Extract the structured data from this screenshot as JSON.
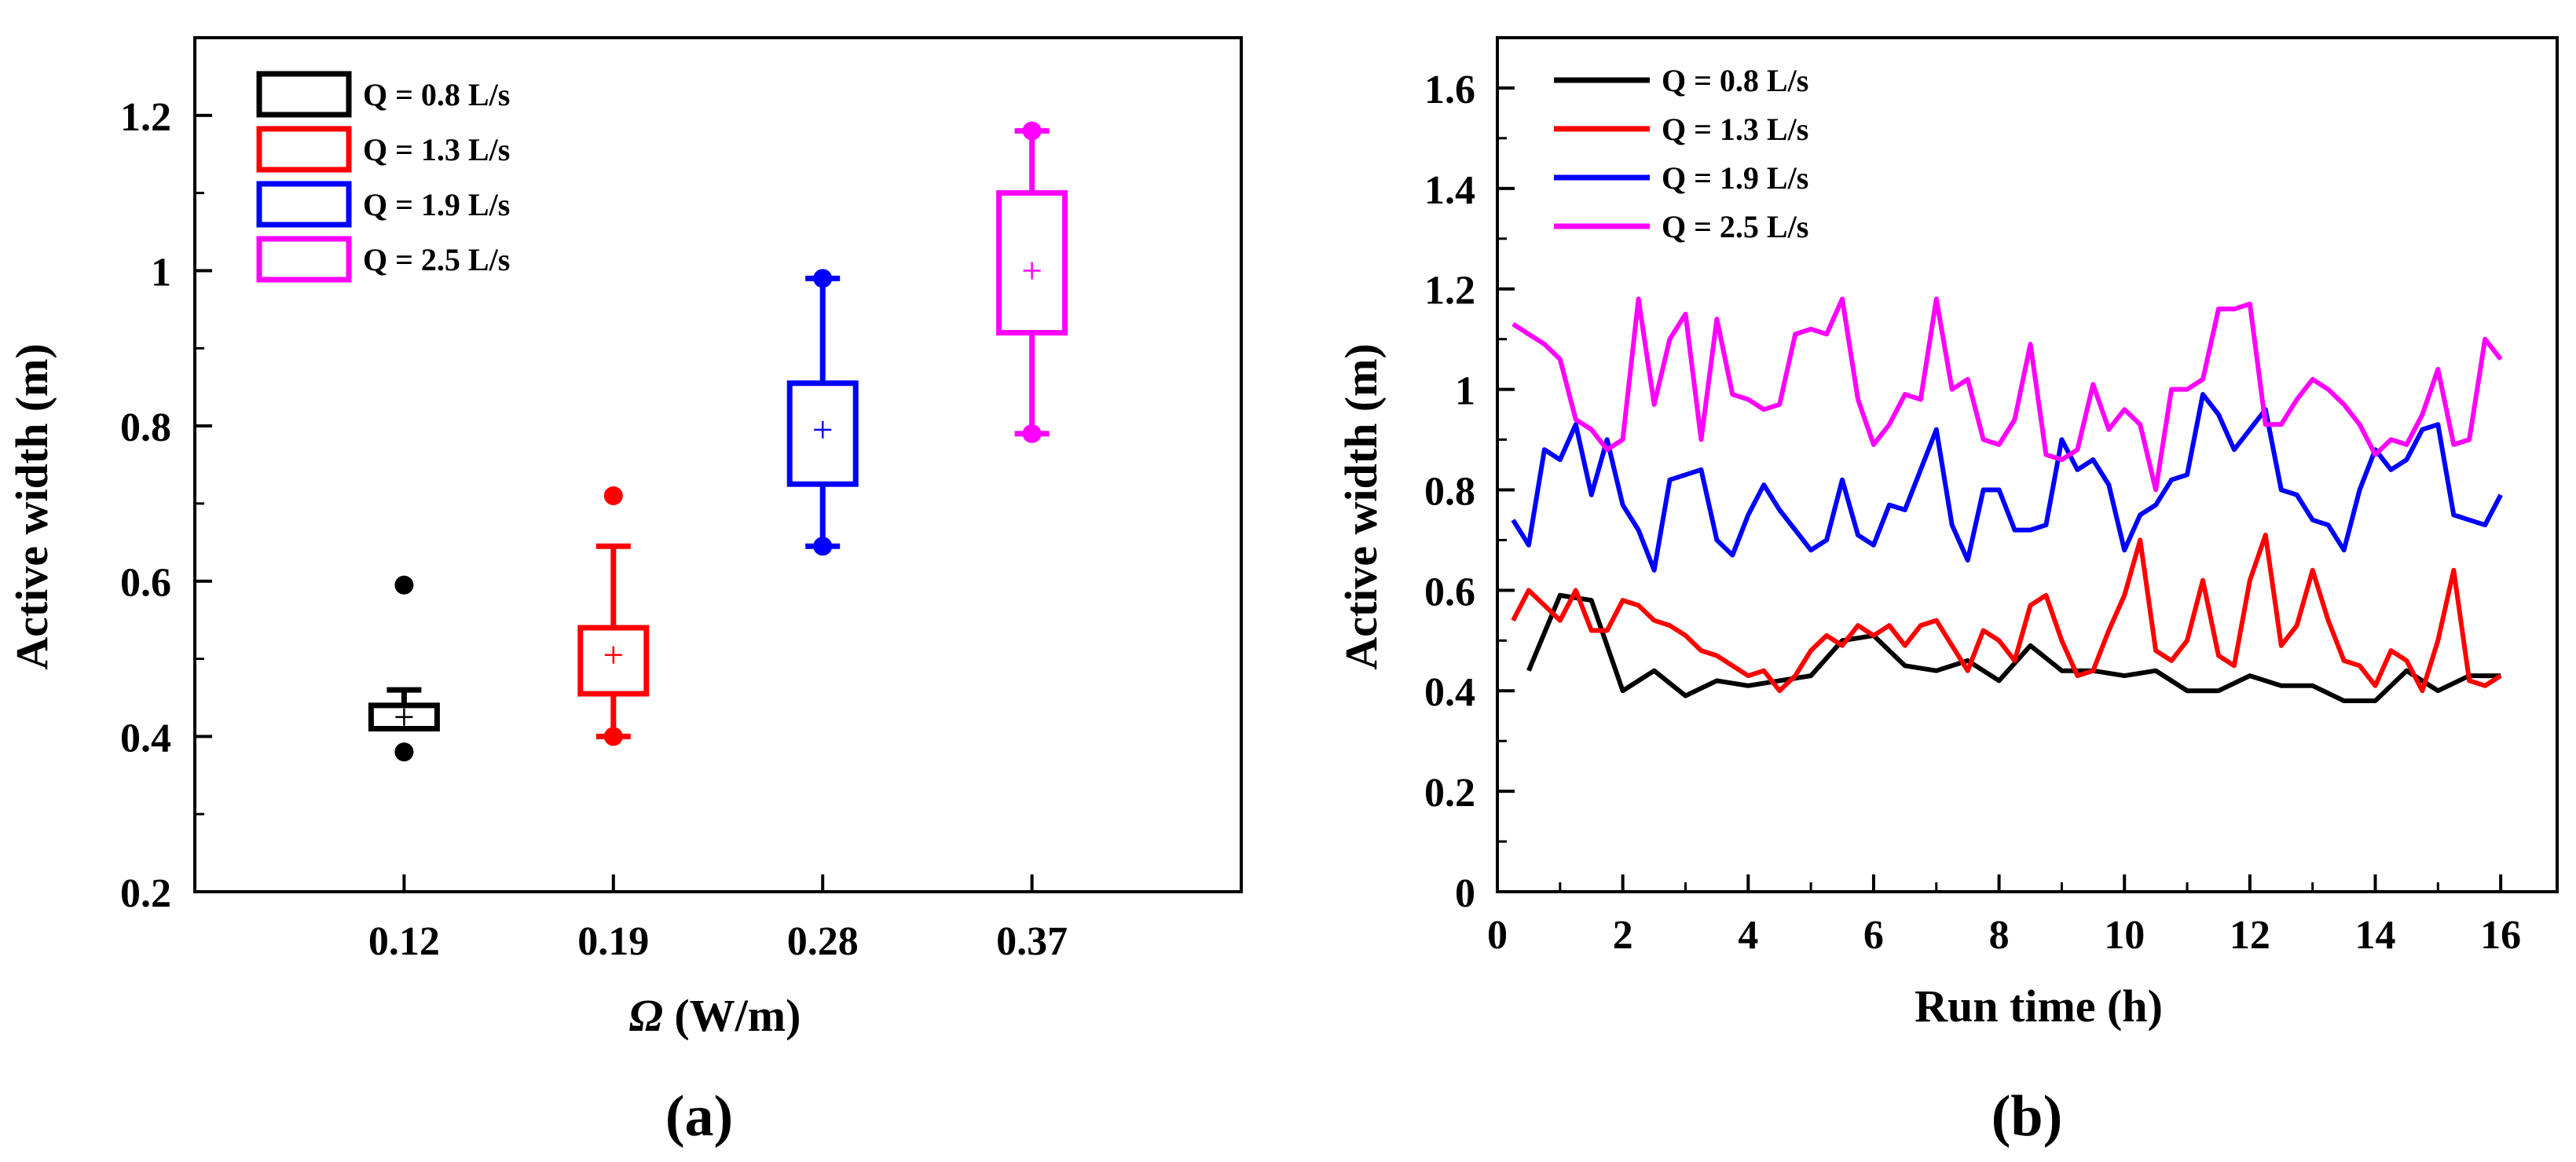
{
  "chart_data": [
    {
      "type": "box",
      "panel_label": "(a)",
      "xlabel_symbol": "Ω",
      "xlabel_unit": " (W/m)",
      "ylabel": "Active width (m)",
      "ylim": [
        0.2,
        1.3
      ],
      "yticks": [
        0.2,
        0.4,
        0.6,
        0.8,
        1,
        1.2
      ],
      "ytick_labels": [
        "0.2",
        "0.4",
        "0.6",
        "0.8",
        "1",
        "1.2"
      ],
      "categories": [
        "0.12",
        "0.19",
        "0.28",
        "0.37"
      ],
      "boxes": [
        {
          "name": "Q = 0.8 L/s",
          "color": "#000000",
          "whisker_low": 0.41,
          "q1": 0.41,
          "median": 0.425,
          "mean": 0.425,
          "q3": 0.44,
          "whisker_high": 0.46,
          "min": 0.38,
          "max": 0.595
        },
        {
          "name": "Q = 1.3 L/s",
          "color": "#ff0000",
          "whisker_low": 0.4,
          "q1": 0.455,
          "median": 0.5,
          "mean": 0.505,
          "q3": 0.54,
          "whisker_high": 0.645,
          "min": 0.4,
          "max": 0.71
        },
        {
          "name": "Q = 1.9 L/s",
          "color": "#0000ff",
          "whisker_low": 0.645,
          "q1": 0.725,
          "median": 0.8,
          "mean": 0.795,
          "q3": 0.855,
          "whisker_high": 0.99,
          "min": 0.645,
          "max": 0.99
        },
        {
          "name": "Q = 2.5 L/s",
          "color": "#ff00ff",
          "whisker_low": 0.79,
          "q1": 0.92,
          "median": 1.0,
          "mean": 1.0,
          "q3": 1.1,
          "whisker_high": 1.18,
          "min": 0.79,
          "max": 1.18
        }
      ],
      "legend": [
        "Q = 0.8 L/s",
        "Q = 1.3 L/s",
        "Q = 1.9 L/s",
        "Q = 2.5 L/s"
      ],
      "legend_position": "top-left"
    },
    {
      "type": "line",
      "panel_label": "(b)",
      "xlabel": "Run time (h)",
      "ylabel": "Active width (m)",
      "xlim": [
        0,
        16.9
      ],
      "ylim": [
        0,
        1.7
      ],
      "xticks": [
        0,
        2,
        4,
        6,
        8,
        10,
        12,
        14,
        16
      ],
      "xtick_labels": [
        "0",
        "2",
        "4",
        "6",
        "8",
        "10",
        "12",
        "14",
        "16"
      ],
      "yticks": [
        0,
        0.2,
        0.4,
        0.6,
        0.8,
        1,
        1.2,
        1.4,
        1.6
      ],
      "ytick_labels": [
        "0",
        "0.2",
        "0.4",
        "0.6",
        "0.8",
        "1",
        "1.2",
        "1.4",
        "1.6"
      ],
      "legend_position": "top-left",
      "series": [
        {
          "name": "Q = 0.8 L/s",
          "color": "#000000",
          "x": [
            0.5,
            1.0,
            1.5,
            2.0,
            2.5,
            3.0,
            3.5,
            4.0,
            4.5,
            5.0,
            5.5,
            6.0,
            6.5,
            7.0,
            7.5,
            8.0,
            8.5,
            9.0,
            9.5,
            10.0,
            10.5,
            11.0,
            11.5,
            12.0,
            12.5,
            13.0,
            13.5,
            14.0,
            14.5,
            15.0,
            15.5,
            16.0
          ],
          "y": [
            0.44,
            0.59,
            0.58,
            0.4,
            0.44,
            0.39,
            0.42,
            0.41,
            0.42,
            0.43,
            0.5,
            0.51,
            0.45,
            0.44,
            0.46,
            0.42,
            0.49,
            0.44,
            0.44,
            0.43,
            0.44,
            0.4,
            0.4,
            0.43,
            0.41,
            0.41,
            0.38,
            0.38,
            0.44,
            0.4,
            0.43,
            0.43
          ]
        },
        {
          "name": "Q = 1.3 L/s",
          "color": "#ff0000",
          "x": [
            0.25,
            0.5,
            0.75,
            1.0,
            1.25,
            1.5,
            1.75,
            2.0,
            2.25,
            2.5,
            2.75,
            3.0,
            3.25,
            3.5,
            3.75,
            4.0,
            4.25,
            4.5,
            4.75,
            5.0,
            5.25,
            5.5,
            5.75,
            6.0,
            6.25,
            6.5,
            6.75,
            7.0,
            7.25,
            7.5,
            7.75,
            8.0,
            8.25,
            8.5,
            8.75,
            9.0,
            9.25,
            9.5,
            9.75,
            10.0,
            10.25,
            10.5,
            10.75,
            11.0,
            11.25,
            11.5,
            11.75,
            12.0,
            12.25,
            12.5,
            12.75,
            13.0,
            13.25,
            13.5,
            13.75,
            14.0,
            14.25,
            14.5,
            14.75,
            15.0,
            15.25,
            15.5,
            15.75,
            16.0
          ],
          "y": [
            0.54,
            0.6,
            0.57,
            0.54,
            0.6,
            0.52,
            0.52,
            0.58,
            0.57,
            0.54,
            0.53,
            0.51,
            0.48,
            0.47,
            0.45,
            0.43,
            0.44,
            0.4,
            0.43,
            0.48,
            0.51,
            0.49,
            0.53,
            0.51,
            0.53,
            0.49,
            0.53,
            0.54,
            0.49,
            0.44,
            0.52,
            0.5,
            0.46,
            0.57,
            0.59,
            0.5,
            0.43,
            0.44,
            0.52,
            0.59,
            0.7,
            0.48,
            0.46,
            0.5,
            0.62,
            0.47,
            0.45,
            0.62,
            0.71,
            0.49,
            0.53,
            0.64,
            0.54,
            0.46,
            0.45,
            0.41,
            0.48,
            0.46,
            0.4,
            0.5,
            0.64,
            0.42,
            0.41,
            0.43
          ]
        },
        {
          "name": "Q = 1.9 L/s",
          "color": "#0000ff",
          "x": [
            0.25,
            0.5,
            0.75,
            1.0,
            1.25,
            1.5,
            1.75,
            2.0,
            2.25,
            2.5,
            2.75,
            3.0,
            3.25,
            3.5,
            3.75,
            4.0,
            4.25,
            4.5,
            4.75,
            5.0,
            5.25,
            5.5,
            5.75,
            6.0,
            6.25,
            6.5,
            6.75,
            7.0,
            7.25,
            7.5,
            7.75,
            8.0,
            8.25,
            8.5,
            8.75,
            9.0,
            9.25,
            9.5,
            9.75,
            10.0,
            10.25,
            10.5,
            10.75,
            11.0,
            11.25,
            11.5,
            11.75,
            12.0,
            12.25,
            12.5,
            12.75,
            13.0,
            13.25,
            13.5,
            13.75,
            14.0,
            14.25,
            14.5,
            14.75,
            15.0,
            15.25,
            15.5,
            15.75,
            16.0
          ],
          "y": [
            0.74,
            0.69,
            0.88,
            0.86,
            0.93,
            0.79,
            0.9,
            0.77,
            0.72,
            0.64,
            0.82,
            0.83,
            0.84,
            0.7,
            0.67,
            0.75,
            0.81,
            0.76,
            0.72,
            0.68,
            0.7,
            0.82,
            0.71,
            0.69,
            0.77,
            0.76,
            0.84,
            0.92,
            0.73,
            0.66,
            0.8,
            0.8,
            0.72,
            0.72,
            0.73,
            0.9,
            0.84,
            0.86,
            0.81,
            0.68,
            0.75,
            0.77,
            0.82,
            0.83,
            0.99,
            0.95,
            0.88,
            0.92,
            0.96,
            0.8,
            0.79,
            0.74,
            0.73,
            0.68,
            0.8,
            0.88,
            0.84,
            0.86,
            0.92,
            0.93,
            0.75,
            0.74,
            0.73,
            0.79
          ]
        },
        {
          "name": "Q = 2.5 L/s",
          "color": "#ff00ff",
          "x": [
            0.25,
            0.5,
            0.75,
            1.0,
            1.25,
            1.5,
            1.75,
            2.0,
            2.25,
            2.5,
            2.75,
            3.0,
            3.25,
            3.5,
            3.75,
            4.0,
            4.25,
            4.5,
            4.75,
            5.0,
            5.25,
            5.5,
            5.75,
            6.0,
            6.25,
            6.5,
            6.75,
            7.0,
            7.25,
            7.5,
            7.75,
            8.0,
            8.25,
            8.5,
            8.75,
            9.0,
            9.25,
            9.5,
            9.75,
            10.0,
            10.25,
            10.5,
            10.75,
            11.0,
            11.25,
            11.5,
            11.75,
            12.0,
            12.25,
            12.5,
            12.75,
            13.0,
            13.25,
            13.5,
            13.75,
            14.0,
            14.25,
            14.5,
            14.75,
            15.0,
            15.25,
            15.5,
            15.75,
            16.0
          ],
          "y": [
            1.13,
            1.11,
            1.09,
            1.06,
            0.94,
            0.92,
            0.88,
            0.9,
            1.18,
            0.97,
            1.1,
            1.15,
            0.9,
            1.14,
            0.99,
            0.98,
            0.96,
            0.97,
            1.11,
            1.12,
            1.11,
            1.18,
            0.98,
            0.89,
            0.93,
            0.99,
            0.98,
            1.18,
            1.0,
            1.02,
            0.9,
            0.89,
            0.94,
            1.09,
            0.87,
            0.86,
            0.88,
            1.01,
            0.92,
            0.96,
            0.93,
            0.8,
            1.0,
            1.0,
            1.02,
            1.16,
            1.16,
            1.17,
            0.93,
            0.93,
            0.98,
            1.02,
            1.0,
            0.97,
            0.93,
            0.87,
            0.9,
            0.89,
            0.95,
            1.04,
            0.89,
            0.9,
            1.1,
            1.06
          ]
        }
      ]
    }
  ]
}
